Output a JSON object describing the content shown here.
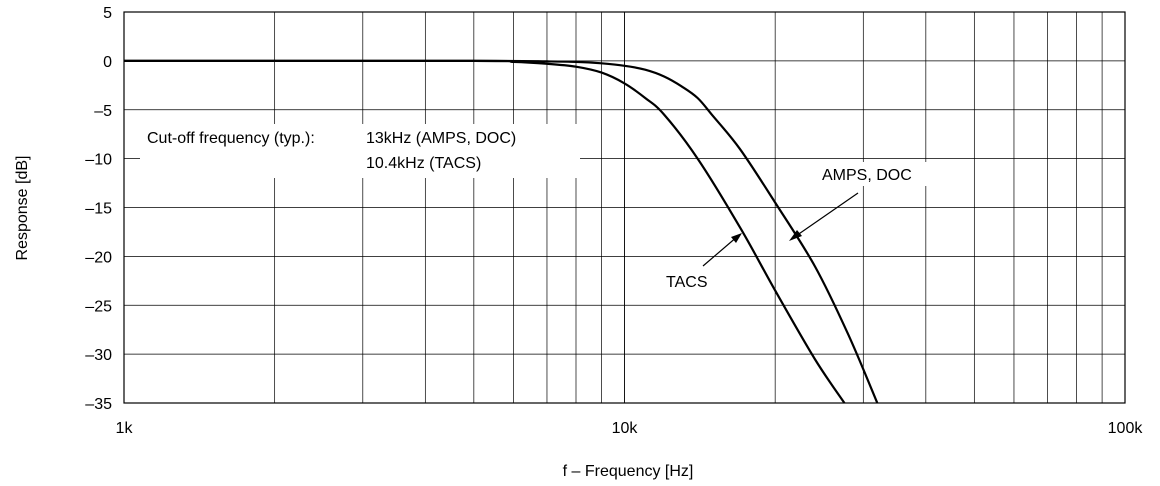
{
  "chart_data": {
    "type": "line",
    "x_scale": "log",
    "xlim": [
      1000,
      100000
    ],
    "ylim": [
      -35,
      5
    ],
    "grid": true,
    "xlabel": "f – Frequency [Hz]",
    "ylabel": "Response [dB]",
    "x_ticks": [
      {
        "value": 1000,
        "label": "1k"
      },
      {
        "value": 10000,
        "label": "10k"
      },
      {
        "value": 100000,
        "label": "100k"
      }
    ],
    "y_ticks": [
      {
        "value": 5,
        "label": "5"
      },
      {
        "value": 0,
        "label": "0"
      },
      {
        "value": -5,
        "label": "–5"
      },
      {
        "value": -10,
        "label": "–10"
      },
      {
        "value": -15,
        "label": "–15"
      },
      {
        "value": -20,
        "label": "–20"
      },
      {
        "value": -25,
        "label": "–25"
      },
      {
        "value": -30,
        "label": "–30"
      },
      {
        "value": -35,
        "label": "–35"
      }
    ],
    "series": [
      {
        "name": "AMPS, DOC",
        "x": [
          1000,
          5000,
          7000,
          8000,
          9000,
          10000,
          11000,
          12000,
          13000,
          14000,
          15000,
          17000,
          20000,
          24000,
          28000,
          32000
        ],
        "y": [
          0,
          0,
          -0.05,
          -0.1,
          -0.25,
          -0.5,
          -0.9,
          -1.6,
          -2.6,
          -3.8,
          -5.6,
          -9,
          -14.5,
          -21,
          -28,
          -35
        ]
      },
      {
        "name": "TACS",
        "x": [
          1000,
          5000,
          6000,
          7000,
          8000,
          9000,
          10000,
          11000,
          12000,
          14000,
          17000,
          20000,
          24000,
          27500
        ],
        "y": [
          0,
          0,
          -0.1,
          -0.3,
          -0.6,
          -1.2,
          -2.3,
          -3.8,
          -5.5,
          -10,
          -17,
          -23.5,
          -30.5,
          -35
        ]
      }
    ],
    "annotations": {
      "cutoff_label": "Cut-off frequency (typ.):",
      "cutoff_amps": "13kHz (AMPS, DOC)",
      "cutoff_tacs": "10.4kHz (TACS)",
      "amps_label": "AMPS, DOC",
      "tacs_label": "TACS"
    }
  }
}
